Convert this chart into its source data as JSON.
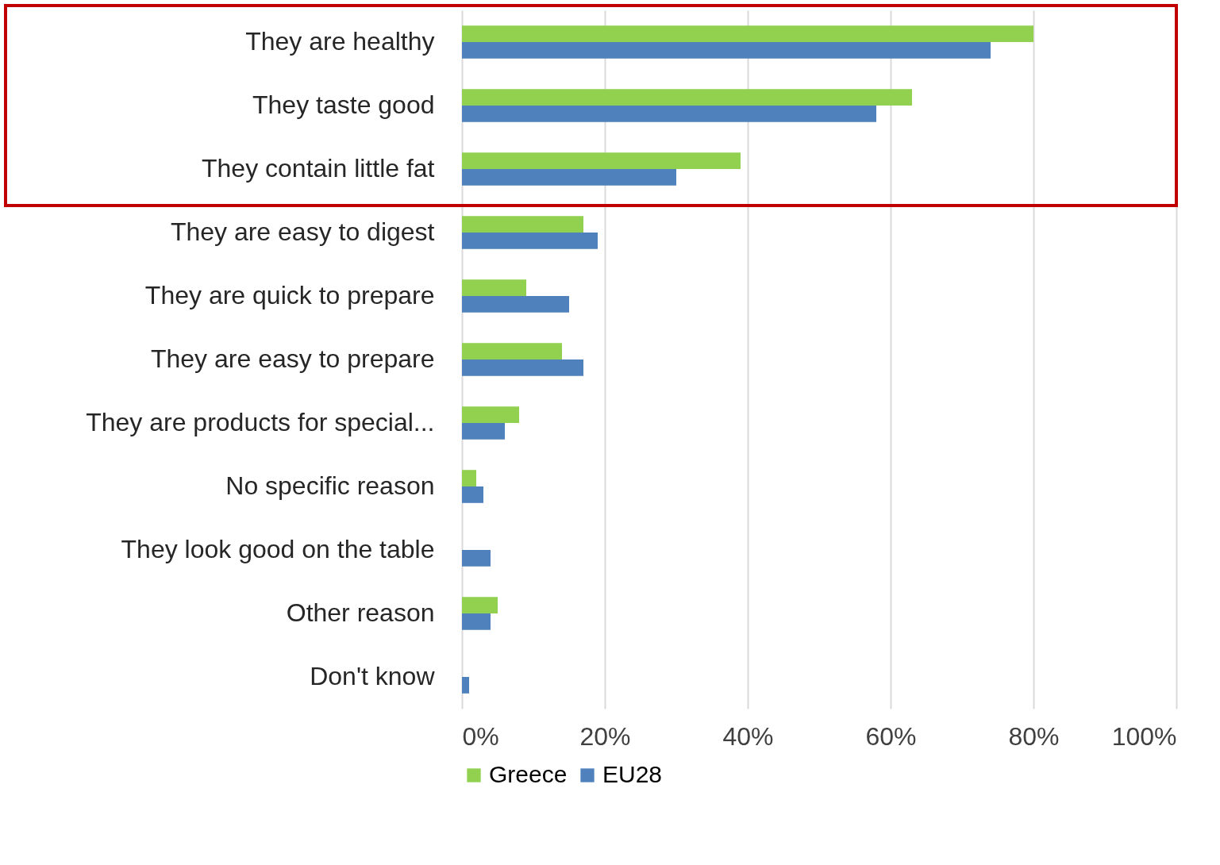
{
  "chart_data": {
    "type": "bar",
    "orientation": "horizontal",
    "categories": [
      "They are healthy",
      "They taste good",
      "They contain little fat",
      "They are easy to digest",
      "They are quick to prepare",
      "They are easy to prepare",
      "They are products for special...",
      "No specific reason",
      "They look good on the table",
      "Other reason",
      "Don't know"
    ],
    "series": [
      {
        "name": "Greece",
        "color": "#92d050",
        "values": [
          80,
          63,
          39,
          17,
          9,
          14,
          8,
          2,
          0,
          5,
          0
        ]
      },
      {
        "name": "EU28",
        "color": "#4f81bd",
        "values": [
          74,
          58,
          30,
          19,
          15,
          17,
          6,
          3,
          4,
          4,
          1
        ]
      }
    ],
    "xlim": [
      0,
      100
    ],
    "xticks": [
      {
        "value": 0,
        "label": "0%"
      },
      {
        "value": 20,
        "label": "20%"
      },
      {
        "value": 40,
        "label": "40%"
      },
      {
        "value": 60,
        "label": "60%"
      },
      {
        "value": 80,
        "label": "80%"
      },
      {
        "value": 100,
        "label": "100%"
      }
    ],
    "grid": "x",
    "legend": "bottom"
  }
}
